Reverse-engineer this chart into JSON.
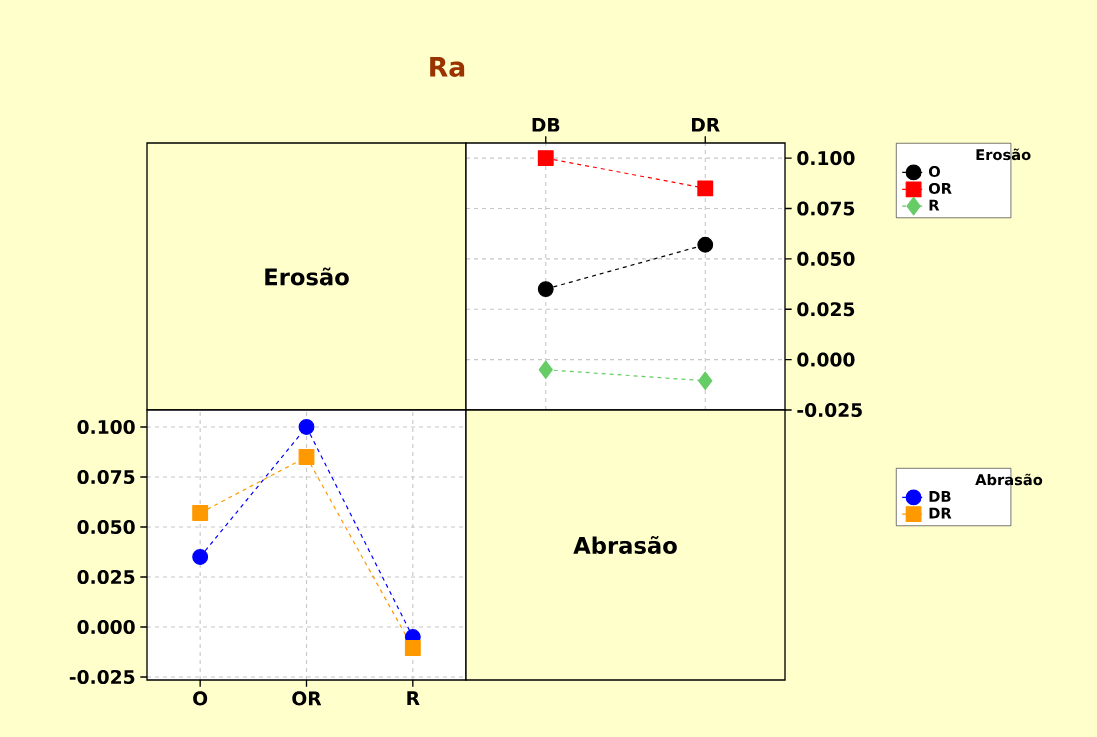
{
  "chart_data": [
    {
      "type": "other",
      "title": "Ra",
      "annotations": [
        "Erosão"
      ]
    },
    {
      "type": "line",
      "categories": [
        "DB",
        "DR"
      ],
      "legend_title": "Erosão",
      "legend": "top right",
      "grid": true,
      "line_style": "dashed",
      "ylim": [
        -0.025,
        0.1075
      ],
      "yticks": [
        {
          "value": -0.025,
          "label": "-0.025"
        },
        {
          "value": 0.0,
          "label": "0.000"
        },
        {
          "value": 0.025,
          "label": "0.025"
        },
        {
          "value": 0.05,
          "label": "0.050"
        },
        {
          "value": 0.075,
          "label": "0.075"
        },
        {
          "value": 0.1,
          "label": "0.100"
        }
      ],
      "series": [
        {
          "name": "O",
          "color": "#000000",
          "marker": "circle",
          "values": [
            0.035,
            0.057
          ]
        },
        {
          "name": "OR",
          "color": "#ff0000",
          "marker": "square",
          "values": [
            0.1,
            0.085
          ]
        },
        {
          "name": "R",
          "color": "#66cc66",
          "marker": "diamond",
          "values": [
            -0.005,
            -0.0105
          ]
        }
      ]
    },
    {
      "type": "line",
      "categories": [
        "O",
        "OR",
        "R"
      ],
      "legend_title": "Abrasão",
      "legend": "right",
      "grid": true,
      "line_style": "dashed",
      "ylim": [
        -0.0265,
        0.1085
      ],
      "yticks": [
        {
          "value": -0.025,
          "label": "-0.025"
        },
        {
          "value": 0.0,
          "label": "0.000"
        },
        {
          "value": 0.025,
          "label": "0.025"
        },
        {
          "value": 0.05,
          "label": "0.050"
        },
        {
          "value": 0.075,
          "label": "0.075"
        },
        {
          "value": 0.1,
          "label": "0.100"
        }
      ],
      "series": [
        {
          "name": "DB",
          "color": "#0000ff",
          "marker": "circle",
          "values": [
            0.035,
            0.1,
            -0.005
          ]
        },
        {
          "name": "DR",
          "color": "#ff9900",
          "marker": "square",
          "values": [
            0.057,
            0.085,
            -0.0105
          ]
        }
      ]
    },
    {
      "type": "other",
      "annotations": [
        "Abrasão"
      ]
    }
  ]
}
